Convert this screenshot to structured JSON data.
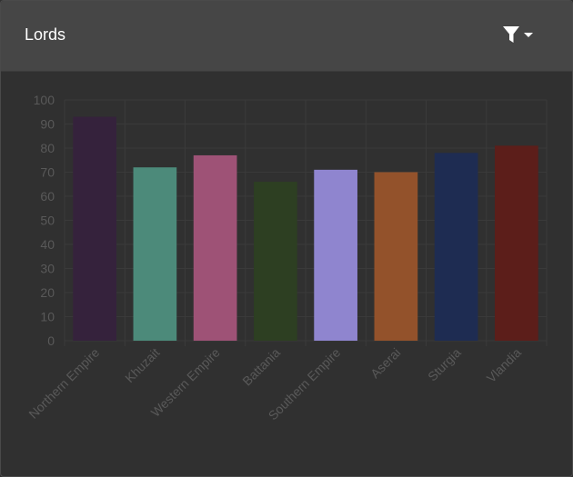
{
  "header": {
    "title": "Lords",
    "filter_icon": "filter-icon",
    "dropdown_icon": "caret-down-icon"
  },
  "colors": {
    "background": "#303030",
    "header_bg": "#464646",
    "grid": "#3a3a3a",
    "axis_text": "#595959",
    "title_text": "#ffffff"
  },
  "chart_data": {
    "type": "bar",
    "title": "",
    "xlabel": "",
    "ylabel": "",
    "ylim": [
      0,
      100
    ],
    "yticks": [
      0,
      10,
      20,
      30,
      40,
      50,
      60,
      70,
      80,
      90,
      100
    ],
    "grid": true,
    "categories": [
      "Northern Empire",
      "Khuzait",
      "Western Empire",
      "Battania",
      "Southern Empire",
      "Aserai",
      "Sturgia",
      "Vlandia"
    ],
    "values": [
      93,
      72,
      77,
      66,
      71,
      70,
      78,
      81
    ],
    "bar_colors": [
      "#35223c",
      "#4c8a7a",
      "#9e5276",
      "#2d3f22",
      "#8f85cf",
      "#93522b",
      "#1e2c52",
      "#5c1e1a"
    ]
  }
}
